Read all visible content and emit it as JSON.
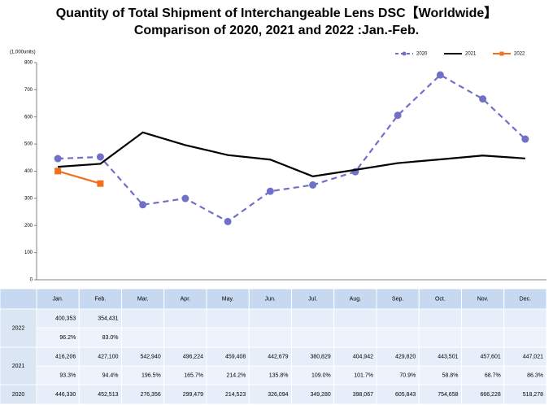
{
  "chart_data": {
    "type": "line",
    "title": "Quantity of Total Shipment of Interchangeable Lens DSC【Worldwide】",
    "subtitle": "Comparison of 2020, 2021 and 2022 :Jan.-Feb.",
    "y_label": "(1,000units)",
    "categories": [
      "Jan.",
      "Feb.",
      "Mar.",
      "Apr.",
      "May.",
      "Jun.",
      "Jul.",
      "Aug.",
      "Sep.",
      "Oct.",
      "Nov.",
      "Dec."
    ],
    "ylim": [
      0,
      800
    ],
    "yticks": [
      0,
      100,
      200,
      300,
      400,
      500,
      600,
      700,
      800
    ],
    "legend": "top-right",
    "series": [
      {
        "name": "2020",
        "color": "#7070c8",
        "dashed": true,
        "marker": "circle",
        "values": [
          446.33,
          452.513,
          276.356,
          299.479,
          214.523,
          326.094,
          349.28,
          398.067,
          605.843,
          754.658,
          666.228,
          518.278
        ],
        "value_labels": [
          "446,330",
          "452,513",
          "276,356",
          "299,479",
          "214,523",
          "326,094",
          "349,280",
          "398,067",
          "605,843",
          "754,658",
          "666,228",
          "518,278"
        ]
      },
      {
        "name": "2021",
        "color": "#000000",
        "dashed": false,
        "marker": "none",
        "values": [
          416.206,
          427.1,
          542.94,
          496.224,
          459.408,
          442.679,
          380.829,
          404.942,
          429.82,
          443.501,
          457.601,
          447.021
        ],
        "value_labels": [
          "416,206",
          "427,100",
          "542,940",
          "496,224",
          "459,408",
          "442,679",
          "380,829",
          "404,942",
          "429,820",
          "443,501",
          "457,601",
          "447,021"
        ]
      },
      {
        "name": "2022",
        "color": "#f07020",
        "dashed": false,
        "marker": "square",
        "values": [
          400.353,
          354.431,
          null,
          null,
          null,
          null,
          null,
          null,
          null,
          null,
          null,
          null
        ],
        "value_labels": [
          "400,353",
          "354,431",
          null,
          null,
          null,
          null,
          null,
          null,
          null,
          null,
          null,
          null
        ]
      }
    ]
  },
  "table": {
    "yoy_2022": [
      "96.2%",
      "83.0%",
      null,
      null,
      null,
      null,
      null,
      null,
      null,
      null,
      null,
      null
    ],
    "yoy_2021": [
      "93.3%",
      "94.4%",
      "196.5%",
      "165.7%",
      "214.2%",
      "135.8%",
      "109.0%",
      "101.7%",
      "70.9%",
      "58.8%",
      "68.7%",
      "86.3%"
    ]
  }
}
